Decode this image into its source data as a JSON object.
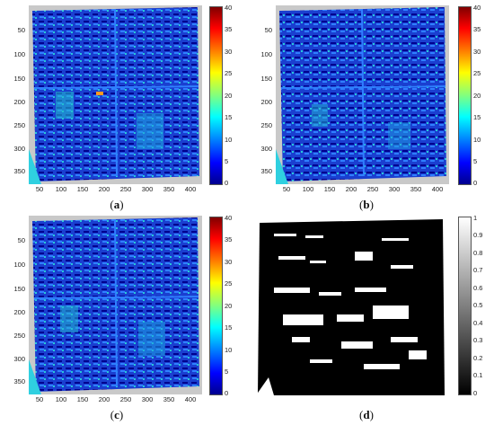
{
  "panels": [
    {
      "id": "a",
      "caption": "a",
      "y_ticks": [
        "50",
        "100",
        "150",
        "200",
        "250",
        "300",
        "350"
      ],
      "x_ticks": [
        "50",
        "100",
        "150",
        "200",
        "250",
        "300",
        "350",
        "400"
      ],
      "colorbar_ticks": [
        "40",
        "35",
        "30",
        "25",
        "20",
        "15",
        "10",
        "5",
        "0"
      ],
      "colormap": "jet"
    },
    {
      "id": "b",
      "caption": "b",
      "y_ticks": [
        "50",
        "100",
        "150",
        "200",
        "250",
        "300",
        "350"
      ],
      "x_ticks": [
        "50",
        "100",
        "150",
        "200",
        "250",
        "300",
        "350",
        "400"
      ],
      "colorbar_ticks": [
        "40",
        "35",
        "30",
        "25",
        "20",
        "15",
        "10",
        "5",
        "0"
      ],
      "colormap": "jet"
    },
    {
      "id": "c",
      "caption": "c",
      "y_ticks": [
        "50",
        "100",
        "150",
        "200",
        "250",
        "300",
        "350"
      ],
      "x_ticks": [
        "50",
        "100",
        "150",
        "200",
        "250",
        "300",
        "350",
        "400"
      ],
      "colorbar_ticks": [
        "40",
        "35",
        "30",
        "25",
        "20",
        "15",
        "10",
        "5",
        "0"
      ],
      "colormap": "jet"
    },
    {
      "id": "d",
      "caption": "d",
      "colorbar_ticks": [
        "1",
        "0.9",
        "0.8",
        "0.7",
        "0.6",
        "0.5",
        "0.4",
        "0.3",
        "0.2",
        "0.1",
        "0"
      ],
      "colormap": "gray"
    }
  ],
  "colors": {
    "background_gray": "#c9c9c9",
    "map_blue": "#1a3fd0",
    "deep_blue": "#00008f",
    "binary_black": "#000000",
    "binary_white": "#ffffff"
  }
}
